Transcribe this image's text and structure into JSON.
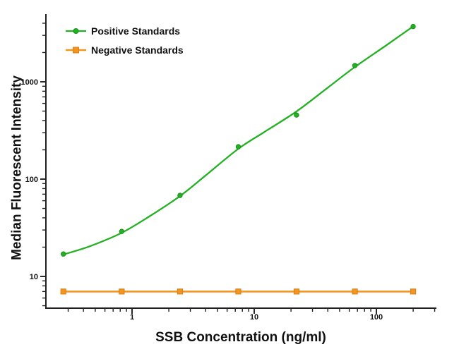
{
  "chart_data": {
    "type": "line",
    "title": "",
    "xlabel": "SSB Concentration (ng/ml)",
    "ylabel": "Median Fluorescent Intensity",
    "x_scale": "log",
    "y_scale": "log",
    "xlim": [
      0.2,
      310
    ],
    "ylim": [
      4.7,
      5000
    ],
    "grid": false,
    "legend_position": "top-left-inside",
    "background": "#ffffff",
    "axis_color": "#1f1f1f",
    "text_color": "#111111",
    "x_major_ticks": [
      1,
      10,
      100
    ],
    "x_tick_labels": [
      "1",
      "10",
      "100"
    ],
    "x_minor_ticks": [
      0.3,
      0.4,
      0.5,
      0.6,
      0.7,
      0.8,
      0.9,
      2,
      3,
      4,
      5,
      6,
      7,
      8,
      9,
      20,
      30,
      40,
      50,
      60,
      70,
      80,
      90,
      200,
      300
    ],
    "y_major_ticks": [
      10,
      100,
      1000
    ],
    "y_tick_labels": [
      "10",
      "100",
      "1000"
    ],
    "y_minor_ticks": [
      5,
      6,
      7,
      8,
      9,
      20,
      30,
      40,
      50,
      60,
      70,
      80,
      90,
      200,
      300,
      400,
      500,
      600,
      700,
      800,
      900,
      2000,
      3000,
      4000,
      5000
    ],
    "series": [
      {
        "name": "Positive Standards",
        "color": "#23b123",
        "marker": "circle",
        "marker_edge": "#179117",
        "x": [
          0.274,
          0.823,
          2.47,
          7.41,
          22.2,
          66.7,
          200
        ],
        "y": [
          17,
          29,
          68,
          215,
          455,
          1470,
          3700
        ],
        "fit_curve": {
          "x": [
            0.274,
            0.45,
            0.823,
            1.4,
            2.47,
            4,
            7.41,
            12,
            22.2,
            40,
            66.7,
            120,
            200
          ],
          "y": [
            16.8,
            20.4,
            28.1,
            41.7,
            67,
            109,
            205,
            303,
            496,
            871,
            1420,
            2360,
            3710
          ]
        }
      },
      {
        "name": "Negative Standards",
        "color": "#f5941f",
        "marker": "square",
        "marker_edge": "#d87f15",
        "x": [
          0.274,
          0.823,
          2.47,
          7.41,
          22.2,
          66.7,
          200
        ],
        "y": [
          7,
          7,
          7,
          7,
          7,
          7,
          7
        ],
        "fit_curve": {
          "x": [
            0.274,
            200
          ],
          "y": [
            7,
            7
          ]
        }
      }
    ]
  }
}
